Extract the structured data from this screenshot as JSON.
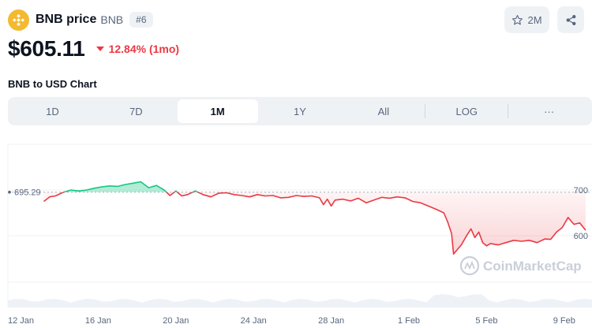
{
  "coin": {
    "name": "BNB price",
    "symbol": "BNB",
    "rank": "#6",
    "price": "$605.11",
    "change": "12.84% (1mo)",
    "logo_color": "#F3BA2F"
  },
  "actions": {
    "watchlist_count": "2M",
    "watch_icon": "star-icon",
    "share_icon": "share-icon"
  },
  "chart_title": "BNB to USD Chart",
  "tabs": [
    {
      "label": "1D",
      "active": false
    },
    {
      "label": "7D",
      "active": false
    },
    {
      "label": "1M",
      "active": true
    },
    {
      "label": "1Y",
      "active": false
    },
    {
      "label": "All",
      "active": false
    },
    {
      "label": "LOG",
      "active": false
    },
    {
      "label": "···",
      "active": false
    }
  ],
  "watermark": "CoinMarketCap",
  "chart_data": {
    "type": "line",
    "reference_value": 695.29,
    "reference_label": "695.29",
    "x_tick_labels": [
      "12 Jan",
      "16 Jan",
      "20 Jan",
      "24 Jan",
      "28 Jan",
      "1 Feb",
      "5 Feb",
      "9 Feb"
    ],
    "x_ticks_day": [
      0,
      4,
      8,
      12,
      16,
      20,
      24,
      28
    ],
    "y_ticks": [
      600,
      700
    ],
    "y_tick_labels": [
      "600",
      "700"
    ],
    "ylim": [
      530,
      735
    ],
    "xlim_day": [
      0,
      29.3
    ],
    "colors": {
      "up": "#16c784",
      "down": "#ea3943"
    },
    "series": [
      {
        "x_day": [
          1.2,
          1.5,
          1.8,
          2.2,
          2.6,
          3.0,
          3.4,
          3.8,
          4.2,
          4.6,
          5.0,
          5.4,
          5.8,
          6.2,
          6.6,
          7.0,
          7.4,
          7.7,
          8.0,
          8.3,
          8.6,
          9.0,
          9.4,
          9.8,
          10.2,
          10.6,
          11.0,
          11.4,
          11.8,
          12.2,
          12.6,
          13.0,
          13.4,
          13.8,
          14.2,
          14.6,
          15.0,
          15.4,
          15.6,
          15.8,
          16.0,
          16.2,
          16.6,
          17.0,
          17.4,
          17.8,
          18.2,
          18.6,
          19.0,
          19.4,
          19.8,
          20.2,
          20.6,
          21.0,
          21.4,
          21.8,
          22.0,
          22.2,
          22.3,
          22.5,
          22.7,
          23.0,
          23.2,
          23.4,
          23.6,
          23.8,
          24.0,
          24.2,
          24.6,
          25.0,
          25.4,
          25.8,
          26.2,
          26.6,
          27.0,
          27.3,
          27.6,
          27.9,
          28.2,
          28.5,
          28.8,
          29.1
        ],
        "y": [
          675,
          685,
          687,
          695,
          700,
          698,
          700,
          704,
          707,
          709,
          708,
          712,
          715,
          718,
          705,
          710,
          700,
          688,
          698,
          687,
          690,
          698,
          690,
          685,
          693,
          694,
          690,
          688,
          685,
          690,
          687,
          688,
          683,
          684,
          688,
          686,
          687,
          683,
          668,
          680,
          665,
          678,
          680,
          676,
          682,
          672,
          678,
          684,
          682,
          685,
          683,
          675,
          672,
          665,
          658,
          650,
          630,
          605,
          560,
          570,
          580,
          602,
          615,
          596,
          608,
          585,
          578,
          583,
          580,
          585,
          590,
          588,
          590,
          585,
          593,
          592,
          608,
          618,
          640,
          625,
          628,
          612
        ]
      }
    ]
  }
}
